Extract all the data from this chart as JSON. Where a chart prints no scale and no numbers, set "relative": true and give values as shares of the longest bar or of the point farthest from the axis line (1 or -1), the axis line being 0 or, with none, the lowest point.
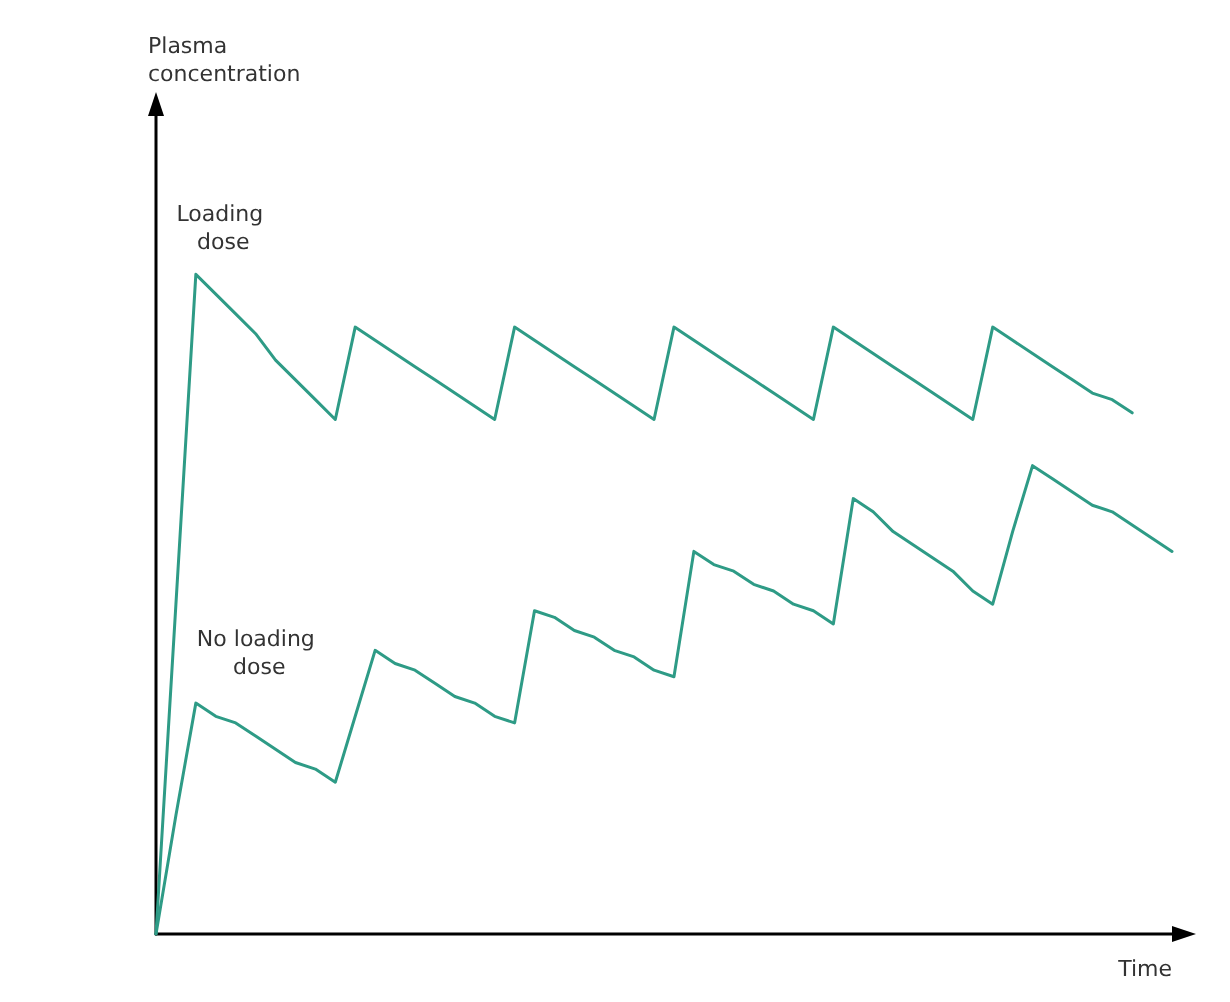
{
  "chart_data": {
    "type": "line",
    "relative": true,
    "xlabel": "Time",
    "annotations": [
      "Plasma concentration"
    ],
    "grid": false,
    "marker": "none",
    "line_style": "solid",
    "categories": [
      null,
      null,
      null,
      null,
      null,
      null,
      null,
      null,
      null,
      null,
      null,
      null,
      null,
      null,
      null,
      null,
      null,
      null,
      null,
      null,
      null,
      null,
      null,
      null,
      null,
      null,
      null,
      null,
      null,
      null,
      null,
      null,
      null,
      null,
      null,
      null,
      null,
      null,
      null,
      null,
      null,
      null,
      null,
      null,
      null,
      null,
      null,
      null,
      null,
      null,
      null,
      null
    ],
    "series": [
      {
        "name": "Loading dose",
        "color": "#2e9b86",
        "values": [
          0,
          0.5,
          1.0,
          0.97,
          0.94,
          0.91,
          0.87,
          0.84,
          0.81,
          0.78,
          0.92,
          0.9,
          0.88,
          0.86,
          0.84,
          0.82,
          0.8,
          0.78,
          0.92,
          0.9,
          0.88,
          0.86,
          0.84,
          0.82,
          0.8,
          0.78,
          0.92,
          0.9,
          0.88,
          0.86,
          0.84,
          0.82,
          0.8,
          0.78,
          0.92,
          0.9,
          0.88,
          0.86,
          0.84,
          0.82,
          0.8,
          0.78,
          0.92,
          0.9,
          0.88,
          0.86,
          0.84,
          0.82,
          0.81,
          0.79,
          null,
          null
        ]
      },
      {
        "name": "No loading dose",
        "color": "#2e9b86",
        "values": [
          0,
          0.18,
          0.35,
          0.33,
          0.32,
          0.3,
          0.28,
          0.26,
          0.25,
          0.23,
          0.33,
          0.43,
          0.41,
          0.4,
          0.38,
          0.36,
          0.35,
          0.33,
          0.32,
          0.49,
          0.48,
          0.46,
          0.45,
          0.43,
          0.42,
          0.4,
          0.39,
          0.58,
          0.56,
          0.55,
          0.53,
          0.52,
          0.5,
          0.49,
          0.47,
          0.66,
          0.64,
          0.61,
          0.59,
          0.57,
          0.55,
          0.52,
          0.5,
          0.61,
          0.71,
          0.69,
          0.67,
          0.65,
          0.64,
          0.62,
          0.6,
          0.58
        ]
      }
    ]
  }
}
